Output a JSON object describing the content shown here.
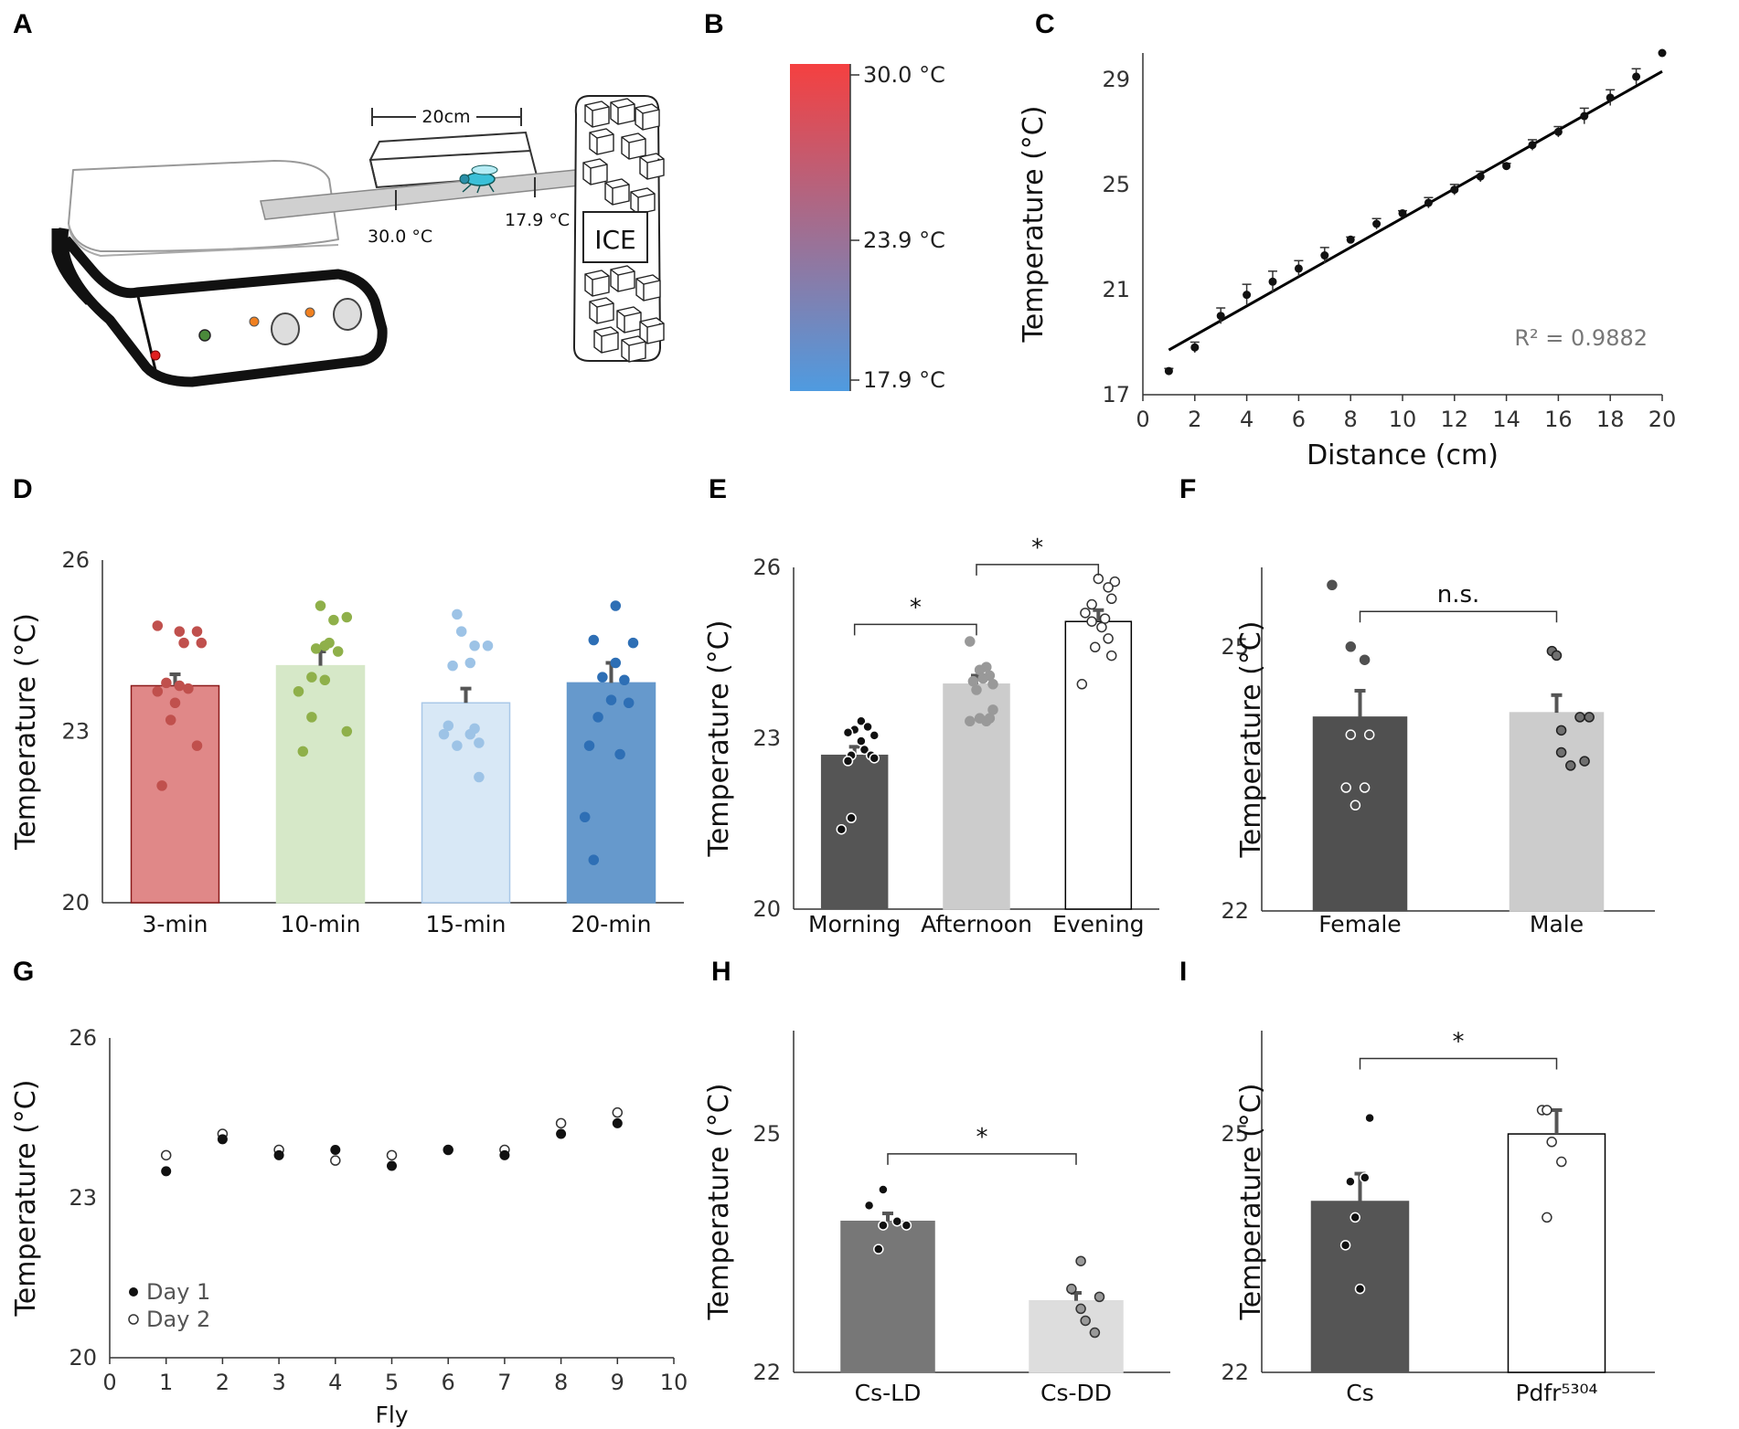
{
  "panels": {
    "A": {
      "letter": "A",
      "scale_label": "20cm",
      "hot_label": "30.0 °C",
      "cold_label": "17.9 °C",
      "ice_label": "ICE"
    },
    "B": {
      "letter": "B",
      "labels": [
        "30.0 °C",
        "23.9 °C",
        "17.9 °C"
      ],
      "colors": {
        "hot": "#f54040",
        "cold": "#4f9be0"
      }
    },
    "C": {
      "letter": "C"
    },
    "D": {
      "letter": "D"
    },
    "E": {
      "letter": "E"
    },
    "F": {
      "letter": "F"
    },
    "G": {
      "letter": "G"
    },
    "H": {
      "letter": "H"
    },
    "I": {
      "letter": "I"
    }
  },
  "chart_data": [
    {
      "id": "C",
      "type": "scatter",
      "title": "",
      "xlabel": "Distance (cm)",
      "ylabel": "Temperature (°C)",
      "xlim": [
        0,
        20
      ],
      "ylim": [
        17,
        30
      ],
      "xticks": [
        0,
        2,
        4,
        6,
        8,
        10,
        12,
        14,
        16,
        18,
        20
      ],
      "yticks": [
        17,
        21,
        25,
        29
      ],
      "x": [
        1,
        2,
        3,
        4,
        5,
        6,
        7,
        8,
        9,
        10,
        11,
        12,
        13,
        14,
        15,
        16,
        17,
        18,
        19,
        20
      ],
      "y": [
        17.9,
        18.8,
        20.0,
        20.8,
        21.3,
        21.8,
        22.3,
        22.9,
        23.5,
        23.9,
        24.3,
        24.8,
        25.3,
        25.7,
        26.5,
        27.0,
        27.6,
        28.3,
        29.1,
        30.0
      ],
      "err": [
        0.1,
        0.2,
        0.3,
        0.4,
        0.4,
        0.3,
        0.3,
        0.1,
        0.2,
        0.1,
        0.2,
        0.2,
        0.2,
        0.1,
        0.2,
        0.2,
        0.3,
        0.3,
        0.3,
        0.0
      ],
      "trendline": {
        "x": [
          1,
          20
        ],
        "y": [
          18.7,
          29.3
        ]
      },
      "annotation": "R² = 0.9882"
    },
    {
      "id": "D",
      "type": "bar",
      "ylabel": "Temperature (°C)",
      "ylim": [
        20,
        26
      ],
      "yticks": [
        20,
        23,
        26
      ],
      "categories": [
        "3-min",
        "10-min",
        "15-min",
        "20-min"
      ],
      "values": [
        23.8,
        24.15,
        23.5,
        23.85
      ],
      "err": [
        0.2,
        0.25,
        0.25,
        0.35
      ],
      "fills": [
        "#e08888",
        "#d6e8c8",
        "#d8e8f6",
        "#6699cc"
      ],
      "edges": [
        "#8b1a1a",
        "#d6e8c8",
        "#a9c8e8",
        "#6699cc"
      ],
      "point_colors": [
        "#c0504d",
        "#8fb04a",
        "#9dc3e6",
        "#2e6fb5"
      ],
      "points": [
        [
          24.85,
          24.75,
          24.75,
          24.55,
          24.55,
          23.85,
          23.8,
          23.75,
          23.7,
          23.5,
          23.2,
          22.75,
          22.05
        ],
        [
          25.2,
          25.0,
          24.95,
          24.55,
          24.5,
          24.45,
          24.4,
          23.95,
          23.9,
          23.7,
          23.25,
          23.0,
          22.65
        ],
        [
          25.05,
          24.75,
          24.5,
          24.5,
          24.2,
          24.15,
          23.1,
          23.05,
          22.95,
          22.95,
          22.8,
          22.75,
          22.2
        ],
        [
          25.2,
          24.6,
          24.55,
          24.2,
          23.95,
          23.9,
          23.55,
          23.5,
          23.25,
          22.75,
          22.6,
          21.5,
          20.75
        ]
      ],
      "point_x": [
        [
          -0.2,
          0.25,
          0.05,
          0.1,
          0.3,
          -0.1,
          0.05,
          0.15,
          -0.2,
          0.0,
          -0.05,
          0.25,
          -0.15
        ],
        [
          0.0,
          0.3,
          0.15,
          0.1,
          0.05,
          -0.05,
          0.2,
          -0.1,
          0.05,
          -0.25,
          -0.1,
          0.3,
          -0.2
        ],
        [
          -0.1,
          -0.05,
          0.1,
          0.25,
          0.05,
          -0.15,
          -0.2,
          0.1,
          -0.25,
          0.05,
          0.15,
          -0.1,
          0.15
        ],
        [
          0.05,
          -0.2,
          0.25,
          0.05,
          -0.1,
          0.15,
          0.0,
          0.2,
          -0.15,
          -0.25,
          0.1,
          -0.3,
          -0.2
        ]
      ]
    },
    {
      "id": "E",
      "type": "bar",
      "ylabel": "Temperature (°C)",
      "ylim": [
        20,
        26
      ],
      "yticks": [
        20,
        23,
        26
      ],
      "categories": [
        "Morning",
        "Afternoon",
        "Evening"
      ],
      "values": [
        22.7,
        23.95,
        25.05
      ],
      "err": [
        0.15,
        0.15,
        0.2
      ],
      "fills": [
        "#555555",
        "#cccccc",
        "#ffffff"
      ],
      "edges": [
        "#555555",
        "#cccccc",
        "#000000"
      ],
      "point_fills": [
        "#111111",
        "#999999",
        "#ffffff"
      ],
      "point_strokes": [
        "#ffffff",
        "#999999",
        "#333333"
      ],
      "points": [
        [
          23.3,
          23.2,
          23.15,
          23.1,
          23.05,
          22.95,
          22.8,
          22.7,
          22.7,
          22.65,
          22.6,
          21.6,
          21.4
        ],
        [
          24.7,
          24.25,
          24.2,
          24.1,
          24.05,
          24.0,
          23.95,
          23.85,
          23.5,
          23.35,
          23.35,
          23.3,
          23.3
        ],
        [
          25.8,
          25.75,
          25.65,
          25.45,
          25.35,
          25.2,
          25.1,
          25.05,
          24.95,
          24.75,
          24.6,
          24.45,
          23.95
        ]
      ],
      "point_x": [
        [
          0.1,
          0.2,
          0.0,
          -0.1,
          0.3,
          0.1,
          0.15,
          -0.05,
          0.25,
          0.3,
          -0.1,
          -0.05,
          -0.2
        ],
        [
          -0.1,
          0.15,
          0.05,
          0.2,
          0.1,
          -0.05,
          0.25,
          0.0,
          0.25,
          0.05,
          0.2,
          0.15,
          -0.1
        ],
        [
          0.0,
          0.25,
          0.15,
          0.2,
          -0.1,
          -0.2,
          0.1,
          -0.1,
          0.05,
          0.15,
          -0.05,
          0.2,
          -0.25
        ]
      ],
      "brackets": [
        {
          "from": 0,
          "to": 1,
          "y": 25.0,
          "label": "*"
        },
        {
          "from": 1,
          "to": 2,
          "y": 26.05,
          "label": "*"
        }
      ]
    },
    {
      "id": "F",
      "type": "bar",
      "ylabel": "Temperature (°C)",
      "ylim": [
        22,
        25.9
      ],
      "yticks": [
        22,
        25
      ],
      "categories": [
        "Female",
        "Male"
      ],
      "values": [
        24.2,
        24.25
      ],
      "err": [
        0.3,
        0.2
      ],
      "fills": [
        "#505050",
        "#cccccc"
      ],
      "edges": [
        "#505050",
        "#cccccc"
      ],
      "point_fills": [
        "#505050",
        "#707070"
      ],
      "point_strokes": [
        "#505050",
        "#222222"
      ],
      "points": [
        [
          25.7,
          25.0,
          24.85,
          24.0,
          24.0,
          23.4,
          23.4,
          23.2
        ],
        [
          24.95,
          24.9,
          24.2,
          24.2,
          24.05,
          23.8,
          23.7,
          23.65
        ]
      ],
      "point_x": [
        [
          -0.3,
          -0.1,
          0.05,
          -0.1,
          0.1,
          -0.15,
          0.05,
          -0.05
        ],
        [
          -0.05,
          0.0,
          0.25,
          0.35,
          0.05,
          0.05,
          0.3,
          0.15
        ]
      ],
      "hollow_below": [
        24.1,
        24.1
      ],
      "brackets": [
        {
          "from": 0,
          "to": 1,
          "y": 25.4,
          "label": "n.s."
        }
      ]
    },
    {
      "id": "G",
      "type": "scatter",
      "xlabel": "Fly",
      "ylabel": "Temperature (°C)",
      "xlim": [
        0,
        10
      ],
      "ylim": [
        20,
        26
      ],
      "xticks": [
        0,
        1,
        2,
        3,
        4,
        5,
        6,
        7,
        8,
        9,
        10
      ],
      "yticks": [
        20,
        23,
        26
      ],
      "series": [
        {
          "name": "Day 1",
          "x": [
            1,
            2,
            3,
            4,
            5,
            6,
            7,
            8,
            9
          ],
          "y": [
            23.5,
            24.1,
            23.8,
            23.9,
            23.6,
            23.9,
            23.8,
            24.2,
            24.4
          ]
        },
        {
          "name": "Day 2",
          "x": [
            1,
            2,
            3,
            4,
            5,
            6,
            7,
            8,
            9
          ],
          "y": [
            23.8,
            24.2,
            23.9,
            23.7,
            23.8,
            23.9,
            23.9,
            24.4,
            24.6
          ]
        }
      ],
      "legend": [
        "Day 1",
        "Day 2"
      ]
    },
    {
      "id": "H",
      "type": "bar",
      "ylabel": "Temperature (°C)",
      "ylim": [
        22,
        26.3
      ],
      "yticks": [
        22,
        25
      ],
      "categories": [
        "Cs-LD",
        "Cs-DD"
      ],
      "values": [
        23.9,
        22.9
      ],
      "err": [
        0.1,
        0.1
      ],
      "fills": [
        "#777777",
        "#dddddd"
      ],
      "edges": [
        "#777777",
        "#dddddd"
      ],
      "point_fills": [
        "#111111",
        "#999999"
      ],
      "point_strokes": [
        "#ffffff",
        "#333333"
      ],
      "points": [
        [
          24.3,
          24.1,
          23.9,
          23.85,
          23.85,
          23.55
        ],
        [
          23.4,
          23.05,
          22.95,
          22.8,
          22.65,
          22.5
        ]
      ],
      "point_x": [
        [
          -0.05,
          -0.2,
          0.1,
          0.2,
          -0.05,
          -0.1
        ],
        [
          0.05,
          -0.05,
          0.25,
          0.05,
          0.1,
          0.2
        ]
      ],
      "brackets": [
        {
          "from": 0,
          "to": 1,
          "y": 24.75,
          "label": "*"
        }
      ]
    },
    {
      "id": "I",
      "type": "bar",
      "ylabel": "Temperature (°C)",
      "ylim": [
        22,
        26.3
      ],
      "yticks": [
        22,
        25
      ],
      "categories": [
        "Cs",
        "Pdfr⁵³⁰⁴"
      ],
      "values": [
        24.15,
        25.0
      ],
      "err": [
        0.35,
        0.3
      ],
      "fills": [
        "#555555",
        "#ffffff"
      ],
      "edges": [
        "#555555",
        "#000000"
      ],
      "point_fills": [
        "#111111",
        "#ffffff"
      ],
      "point_strokes": [
        "#ffffff",
        "#333333"
      ],
      "points": [
        [
          25.2,
          24.45,
          24.4,
          23.95,
          23.6,
          23.05
        ],
        [
          25.3,
          25.3,
          24.9,
          24.65,
          23.95
        ]
      ],
      "point_x": [
        [
          0.1,
          0.05,
          -0.1,
          -0.05,
          -0.15,
          0.0
        ],
        [
          -0.15,
          -0.1,
          -0.05,
          0.05,
          -0.1
        ]
      ],
      "brackets": [
        {
          "from": 0,
          "to": 1,
          "y": 25.95,
          "label": "*"
        }
      ]
    }
  ]
}
